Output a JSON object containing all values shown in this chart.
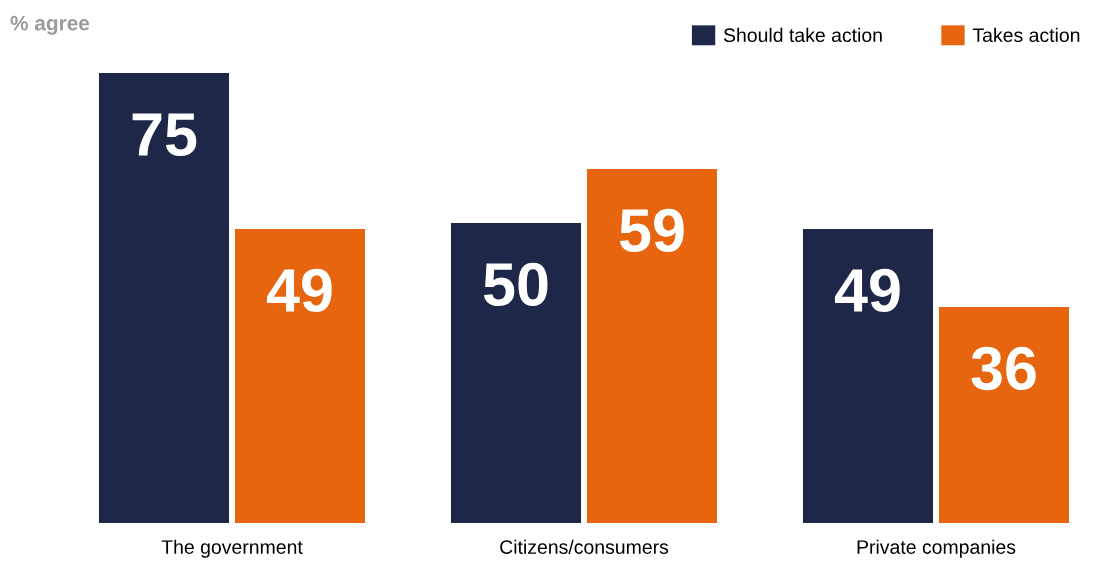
{
  "chart_data": {
    "type": "bar",
    "ylabel": "% agree",
    "categories": [
      "The government",
      "Citizens/consumers",
      "Private companies"
    ],
    "series": [
      {
        "name": "Should take action",
        "color": "#1f2748",
        "values": [
          75,
          50,
          49
        ]
      },
      {
        "name": "Takes action",
        "color": "#e8650f",
        "values": [
          49,
          59,
          36
        ]
      }
    ],
    "data_labels": true,
    "grid": false,
    "legend": "top right"
  }
}
